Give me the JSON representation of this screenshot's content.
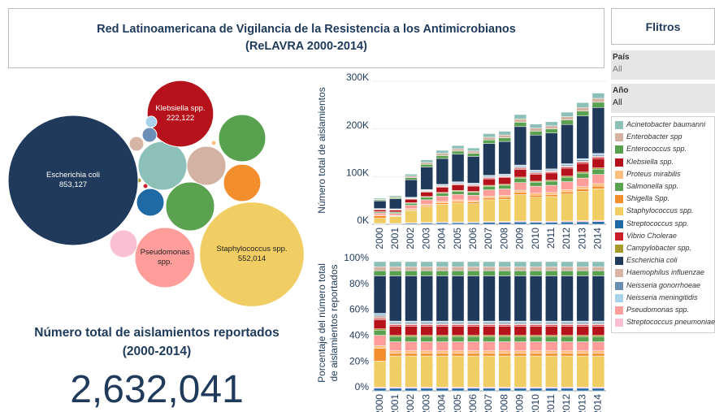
{
  "header": {
    "title_lines": [
      "Red Latinoamericana de Vigilancia de la Resistencia a los Antimicrobianos",
      "(ReLAVRA 2000-2014)"
    ]
  },
  "filters": {
    "title": "Flitros",
    "fields": [
      {
        "label": "País",
        "value": "All"
      },
      {
        "label": "Año",
        "value": "All"
      }
    ]
  },
  "kpi": {
    "title_lines": [
      "Número total de aislamientos reportados",
      "(2000-2014)"
    ],
    "value": "2,632,041"
  },
  "chart_data": [
    {
      "type": "bubble",
      "categories": [
        null,
        null,
        null,
        "Klebsiella spp.",
        null,
        null,
        null,
        "Staphylococcus spp.",
        null,
        null,
        null,
        "Escherichia coli",
        null,
        null,
        null,
        "Pseudomonas spp.",
        null
      ],
      "values": [
        120000,
        77000,
        112000,
        222122,
        1200,
        120000,
        70000,
        552014,
        38500,
        1200,
        1200,
        853127,
        10800,
        10800,
        6500,
        182000,
        38500
      ],
      "value_labels": [
        null,
        null,
        null,
        "222,122",
        null,
        null,
        null,
        "552,014",
        null,
        null,
        null,
        "853,127",
        null,
        null,
        null,
        null,
        null
      ]
    },
    {
      "type": "stacked_bar",
      "ylabel": "Número total de aislamientos",
      "categories": [
        "2000",
        "2001",
        "2002",
        "2003",
        "2004",
        "2005",
        "2006",
        "2007",
        "2008",
        "2009",
        "2010",
        "2011",
        "2012",
        "2013",
        "2014"
      ],
      "ylim": [
        0,
        310000
      ],
      "yticks": [
        {
          "value": 0,
          "label": "0K"
        },
        {
          "value": 100000,
          "label": "100K"
        },
        {
          "value": 200000,
          "label": "200K"
        },
        {
          "value": 300000,
          "label": "300K"
        }
      ],
      "series": [
        {
          "name": "Acinetobacter baumanni",
          "color": "#8cc0b8",
          "values": [
            2200,
            2400,
            4200,
            5400,
            6200,
            6600,
            6400,
            7600,
            7800,
            9200,
            8400,
            8600,
            9400,
            10200,
            11000
          ]
        },
        {
          "name": "Enterobacter spp",
          "color": "#d4b2a2",
          "values": [
            1650,
            1800,
            3150,
            4050,
            4650,
            4950,
            4800,
            5700,
            5850,
            6900,
            6300,
            6450,
            7050,
            7650,
            8250
          ]
        },
        {
          "name": "Enterococcus spp.",
          "color": "#58a14e",
          "values": [
            2200,
            2400,
            4200,
            5400,
            6200,
            6600,
            6400,
            7600,
            7800,
            9200,
            8400,
            8600,
            9400,
            10200,
            11000
          ]
        },
        {
          "name": "Klebsiella spp.",
          "color": "#b5121b",
          "values": [
            3850,
            4200,
            7350,
            9450,
            10850,
            11550,
            11200,
            13300,
            13650,
            16100,
            14700,
            15050,
            16450,
            17850,
            19250
          ]
        },
        {
          "name": "Proteus mirabilis",
          "color": "#ffbe7d",
          "values": [
            1100,
            1200,
            2100,
            2700,
            3100,
            3300,
            3200,
            3800,
            3900,
            4600,
            4200,
            4300,
            4700,
            5100,
            5500
          ]
        },
        {
          "name": "Salmonella spp.",
          "color": "#5aa150",
          "values": [
            2200,
            2400,
            4200,
            5400,
            6200,
            6600,
            6400,
            7600,
            7800,
            9200,
            8400,
            8600,
            9400,
            10200,
            11000
          ]
        },
        {
          "name": "Shigella Spp.",
          "color": "#f28e2b",
          "values": [
            5500,
            1200,
            2100,
            2700,
            3100,
            3300,
            3200,
            3800,
            3900,
            4600,
            4200,
            4300,
            4700,
            5100,
            5500
          ]
        },
        {
          "name": "Staphylococcus spp.",
          "color": "#f1ce63",
          "values": [
            11000,
            14400,
            25200,
            32400,
            37200,
            39600,
            38400,
            45600,
            46800,
            55200,
            50400,
            51600,
            56400,
            61200,
            66000
          ]
        },
        {
          "name": "Streptococcus spp.",
          "color": "#1f6aa5",
          "values": [
            1100,
            1200,
            2100,
            2700,
            3100,
            3300,
            3200,
            3800,
            3900,
            4600,
            4200,
            4300,
            4700,
            5100,
            5500
          ]
        },
        {
          "name": "Vibrio Cholerae",
          "color": "#c8202a",
          "values": [
            550,
            600,
            1050,
            1350,
            1550,
            1650,
            1600,
            1900,
            1950,
            2300,
            2100,
            2150,
            2350,
            2550,
            2750
          ]
        },
        {
          "name": "Campylobacter spp.",
          "color": "#a89a2a",
          "values": [
            550,
            600,
            1050,
            1350,
            1550,
            1650,
            1600,
            1900,
            1950,
            2300,
            2100,
            2150,
            2350,
            2550,
            2750
          ]
        },
        {
          "name": "Escherichia coli",
          "color": "#1f3a5a",
          "values": [
            15950,
            21000,
            36750,
            47250,
            54250,
            57750,
            56000,
            66500,
            68250,
            80500,
            73500,
            75250,
            82250,
            89250,
            96250
          ]
        },
        {
          "name": "Haemophilus influenzae",
          "color": "#d7b5a6",
          "values": [
            1100,
            600,
            1050,
            1350,
            1550,
            1650,
            1600,
            1900,
            1950,
            2300,
            2100,
            2150,
            2350,
            2550,
            2750
          ]
        },
        {
          "name": "Neisseria gonorrhoeae",
          "color": "#6d8fb5",
          "values": [
            550,
            600,
            1050,
            1350,
            1550,
            1650,
            1600,
            1900,
            1950,
            2300,
            2100,
            2150,
            2350,
            2550,
            2750
          ]
        },
        {
          "name": "Neisseria meningitidis",
          "color": "#a7d2ea",
          "values": [
            550,
            600,
            1050,
            1350,
            1550,
            1650,
            1600,
            1900,
            1950,
            2300,
            2100,
            2150,
            2350,
            2550,
            2750
          ]
        },
        {
          "name": "Pseudomonas spp.",
          "color": "#ff9d9a",
          "values": [
            4400,
            4200,
            7350,
            9450,
            10850,
            11550,
            11200,
            13300,
            13650,
            16100,
            14700,
            15050,
            16450,
            17850,
            19250
          ]
        },
        {
          "name": "Streptococcus pneumoniae",
          "color": "#fabfd2",
          "values": [
            550,
            600,
            1050,
            1350,
            1550,
            1650,
            1600,
            1900,
            1950,
            2300,
            2100,
            2150,
            2350,
            2550,
            2750
          ]
        }
      ]
    },
    {
      "type": "stacked_bar",
      "ylabel_lines": [
        "Porcentaje del número total",
        "de aislamientos reportados"
      ],
      "categories": [
        "2000",
        "2001",
        "2002",
        "2003",
        "2004",
        "2005",
        "2006",
        "2007",
        "2008",
        "2009",
        "2010",
        "2011",
        "2012",
        "2013",
        "2014"
      ],
      "ylim": [
        0,
        105
      ],
      "yticks": [
        {
          "value": 0,
          "label": "0%"
        },
        {
          "value": 20,
          "label": "20%"
        },
        {
          "value": 40,
          "label": "40%"
        },
        {
          "value": 60,
          "label": "60%"
        },
        {
          "value": 80,
          "label": "80%"
        },
        {
          "value": 100,
          "label": "100%"
        }
      ],
      "series": [
        {
          "values": [
            4,
            4,
            4,
            4,
            4,
            4,
            4,
            4,
            4,
            4,
            4,
            4,
            4,
            4,
            4
          ]
        },
        {
          "values": [
            3,
            3,
            3,
            3,
            3,
            3,
            3,
            3,
            3,
            3,
            3,
            3,
            3,
            3,
            3
          ]
        },
        {
          "values": [
            4,
            4,
            4,
            4,
            4,
            4,
            4,
            4,
            4,
            4,
            4,
            4,
            4,
            4,
            4
          ]
        },
        {
          "values": [
            7,
            7,
            7,
            7,
            7,
            7,
            7,
            7,
            7,
            7,
            7,
            7,
            7,
            7,
            7
          ]
        },
        {
          "values": [
            2,
            2,
            2,
            2,
            2,
            2,
            2,
            2,
            2,
            2,
            2,
            2,
            2,
            2,
            2
          ]
        },
        {
          "values": [
            4,
            4,
            4,
            4,
            4,
            4,
            4,
            4,
            4,
            4,
            4,
            4,
            4,
            4,
            4
          ]
        },
        {
          "values": [
            10,
            2,
            2,
            2,
            2,
            2,
            2,
            2,
            2,
            2,
            2,
            2,
            2,
            2,
            2
          ]
        },
        {
          "values": [
            20,
            24,
            24,
            24,
            24,
            24,
            24,
            24,
            24,
            24,
            24,
            24,
            24,
            24,
            24
          ]
        },
        {
          "values": [
            2,
            2,
            2,
            2,
            2,
            2,
            2,
            2,
            2,
            2,
            2,
            2,
            2,
            2,
            2
          ]
        },
        {
          "values": [
            1,
            1,
            1,
            1,
            1,
            1,
            1,
            1,
            1,
            1,
            1,
            1,
            1,
            1,
            1
          ]
        },
        {
          "values": [
            1,
            1,
            1,
            1,
            1,
            1,
            1,
            1,
            1,
            1,
            1,
            1,
            1,
            1,
            1
          ]
        },
        {
          "values": [
            29,
            35,
            35,
            35,
            35,
            35,
            35,
            35,
            35,
            35,
            35,
            35,
            35,
            35,
            35
          ]
        },
        {
          "values": [
            2,
            1,
            1,
            1,
            1,
            1,
            1,
            1,
            1,
            1,
            1,
            1,
            1,
            1,
            1
          ]
        },
        {
          "values": [
            1,
            1,
            1,
            1,
            1,
            1,
            1,
            1,
            1,
            1,
            1,
            1,
            1,
            1,
            1
          ]
        },
        {
          "values": [
            1,
            1,
            1,
            1,
            1,
            1,
            1,
            1,
            1,
            1,
            1,
            1,
            1,
            1,
            1
          ]
        },
        {
          "values": [
            8,
            7,
            7,
            7,
            7,
            7,
            7,
            7,
            7,
            7,
            7,
            7,
            7,
            7,
            7
          ]
        },
        {
          "values": [
            1,
            1,
            1,
            1,
            1,
            1,
            1,
            1,
            1,
            1,
            1,
            1,
            1,
            1,
            1
          ]
        }
      ]
    }
  ]
}
